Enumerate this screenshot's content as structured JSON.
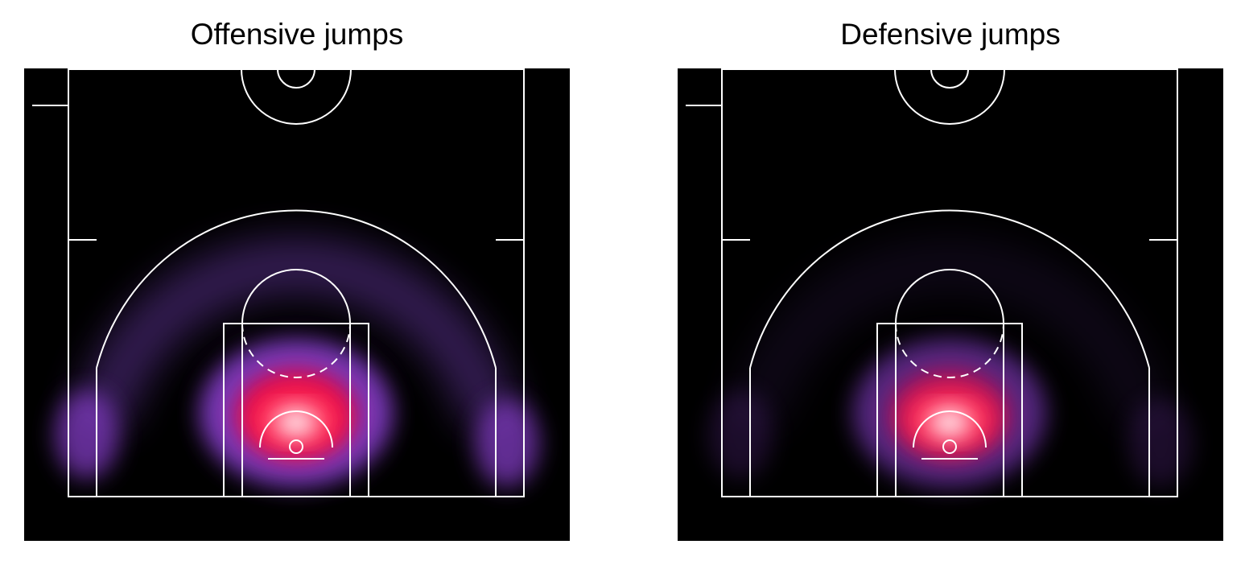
{
  "chart_data": [
    {
      "type": "heatmap",
      "title": "Offensive jumps",
      "background": "#000000",
      "line_color": "#ffffff",
      "colormap": [
        "#000000",
        "#2a1240",
        "#6a3aa8",
        "#8a3fd0",
        "#e8003a",
        "#ff2a55",
        "#ffffff"
      ],
      "hotspots": [
        {
          "zone": "rim",
          "intensity": 1.0
        },
        {
          "zone": "paint",
          "intensity": 0.8
        },
        {
          "zone": "left-corner",
          "intensity": 0.35
        },
        {
          "zone": "right-corner",
          "intensity": 0.35
        },
        {
          "zone": "above-the-break-arc",
          "intensity": 0.3
        }
      ]
    },
    {
      "type": "heatmap",
      "title": "Defensive jumps",
      "background": "#000000",
      "line_color": "#ffffff",
      "colormap": [
        "#000000",
        "#2a1240",
        "#6a3aa8",
        "#8a3fd0",
        "#e8003a",
        "#ff2a55",
        "#ffffff"
      ],
      "hotspots": [
        {
          "zone": "rim",
          "intensity": 1.0
        },
        {
          "zone": "paint",
          "intensity": 0.55
        },
        {
          "zone": "left-corner",
          "intensity": 0.1
        },
        {
          "zone": "right-corner",
          "intensity": 0.1
        },
        {
          "zone": "above-the-break-arc",
          "intensity": 0.08
        }
      ]
    }
  ]
}
